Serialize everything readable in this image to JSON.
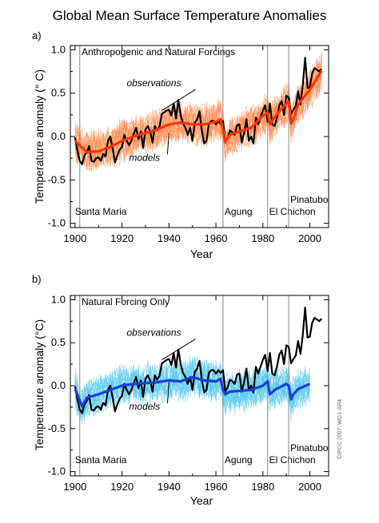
{
  "figure_title": "Global Mean Surface Temperature Anomalies",
  "copyright": "©IPCC 2007: WG1-AR4",
  "colors": {
    "observations": "#000000",
    "models_mean_a": "#ff3300",
    "models_ensemble_a": "#ff8a4d",
    "models_mean_b": "#1a3fd6",
    "models_ensemble_b": "#55c8f0",
    "event_lines": "#999999",
    "axes": "#000000"
  },
  "chart_data": [
    {
      "type": "line",
      "panel_label": "a)",
      "title": "Anthropogenic and Natural Forcings",
      "xlabel": "Year",
      "ylabel": "Temperature anomaly (° C)",
      "xlim": [
        1898,
        2008
      ],
      "ylim": [
        -1.05,
        1.05
      ],
      "x_ticks": [
        "1900",
        "1920",
        "1940",
        "1960",
        "1980",
        "2000"
      ],
      "y_ticks": [
        "1.0",
        "0.5",
        "0.0",
        "-0.5",
        "-1.0"
      ],
      "grid": false,
      "events": [
        {
          "name": "Santa Maria",
          "year": 1902
        },
        {
          "name": "Agung",
          "year": 1963
        },
        {
          "name": "El Chichon",
          "year": 1982
        },
        {
          "name": "Pinatubo",
          "year": 1991
        }
      ],
      "annotations": [
        {
          "text": "observations",
          "x": 1922,
          "y": 0.58,
          "arrow_to": [
            1937,
            0.3
          ]
        },
        {
          "text": "models",
          "x": 1923,
          "y": -0.28,
          "arrow_to": [
            1940,
            0.04
          ]
        }
      ],
      "series": [
        {
          "name": "observations",
          "role": "observations",
          "x": [
            1900,
            1901,
            1902,
            1903,
            1904,
            1905,
            1906,
            1907,
            1908,
            1909,
            1910,
            1911,
            1912,
            1913,
            1914,
            1915,
            1916,
            1917,
            1918,
            1919,
            1920,
            1921,
            1922,
            1923,
            1924,
            1925,
            1926,
            1927,
            1928,
            1929,
            1930,
            1931,
            1932,
            1933,
            1934,
            1935,
            1936,
            1937,
            1938,
            1939,
            1940,
            1941,
            1942,
            1943,
            1944,
            1945,
            1946,
            1947,
            1948,
            1949,
            1950,
            1951,
            1952,
            1953,
            1954,
            1955,
            1956,
            1957,
            1958,
            1959,
            1960,
            1961,
            1962,
            1963,
            1964,
            1965,
            1966,
            1967,
            1968,
            1969,
            1970,
            1971,
            1972,
            1973,
            1974,
            1975,
            1976,
            1977,
            1978,
            1979,
            1980,
            1981,
            1982,
            1983,
            1984,
            1985,
            1986,
            1987,
            1988,
            1989,
            1990,
            1991,
            1992,
            1993,
            1994,
            1995,
            1996,
            1997,
            1998,
            1999,
            2000,
            2001,
            2002,
            2003,
            2004,
            2005
          ],
          "values": [
            -0.01,
            -0.16,
            -0.28,
            -0.32,
            -0.22,
            -0.18,
            -0.11,
            -0.28,
            -0.29,
            -0.25,
            -0.24,
            -0.28,
            -0.2,
            -0.23,
            -0.05,
            0.0,
            -0.14,
            -0.3,
            -0.22,
            -0.15,
            -0.12,
            0.02,
            -0.05,
            -0.1,
            -0.05,
            0.03,
            0.1,
            -0.03,
            0.06,
            -0.13,
            0.08,
            0.12,
            0.06,
            -0.07,
            0.12,
            0.07,
            0.12,
            0.26,
            0.28,
            0.3,
            0.31,
            0.24,
            0.38,
            0.21,
            0.42,
            0.25,
            0.15,
            0.1,
            0.02,
            0.1,
            -0.05,
            0.16,
            0.2,
            0.29,
            0.07,
            -0.08,
            -0.05,
            0.15,
            0.18,
            0.18,
            0.14,
            0.18,
            0.15,
            0.18,
            -0.07,
            -0.02,
            0.07,
            0.05,
            0.02,
            0.13,
            0.14,
            -0.07,
            0.04,
            0.2,
            -0.05,
            0.0,
            -0.08,
            0.22,
            0.14,
            0.22,
            0.3,
            0.36,
            0.17,
            0.38,
            0.14,
            0.12,
            0.22,
            0.36,
            0.41,
            0.25,
            0.47,
            0.45,
            0.26,
            0.31,
            0.35,
            0.52,
            0.37,
            0.59,
            0.91,
            0.56,
            0.57,
            0.73,
            0.79,
            0.77,
            0.75,
            0.78
          ]
        },
        {
          "name": "models",
          "role": "model_mean",
          "x": [
            1900,
            1905,
            1910,
            1915,
            1920,
            1925,
            1930,
            1935,
            1940,
            1945,
            1950,
            1955,
            1960,
            1962,
            1963,
            1964,
            1966,
            1970,
            1975,
            1980,
            1982,
            1983,
            1984,
            1986,
            1990,
            1991,
            1992,
            1993,
            1995,
            2000,
            2005
          ],
          "values": [
            -0.05,
            -0.18,
            -0.17,
            -0.12,
            -0.05,
            0.0,
            0.04,
            0.08,
            0.14,
            0.16,
            0.14,
            0.14,
            0.17,
            0.2,
            0.08,
            -0.06,
            0.02,
            0.06,
            0.1,
            0.24,
            0.28,
            0.14,
            0.18,
            0.26,
            0.38,
            0.4,
            0.15,
            0.2,
            0.37,
            0.54,
            0.76
          ]
        }
      ]
    },
    {
      "type": "line",
      "panel_label": "b)",
      "title": "Natural Forcing Only",
      "xlabel": "Year",
      "ylabel": "Temperature anomaly (°C)",
      "xlim": [
        1898,
        2008
      ],
      "ylim": [
        -1.05,
        1.05
      ],
      "x_ticks": [
        "1900",
        "1920",
        "1940",
        "1960",
        "1980",
        "2000"
      ],
      "y_ticks": [
        "1.0",
        "0.5",
        "0.0",
        "-0.5",
        "-1.0"
      ],
      "grid": false,
      "events": [
        {
          "name": "Santa Maria",
          "year": 1902
        },
        {
          "name": "Agung",
          "year": 1963
        },
        {
          "name": "El Chichon",
          "year": 1982
        },
        {
          "name": "Pinatubo",
          "year": 1991
        }
      ],
      "annotations": [
        {
          "text": "observations",
          "x": 1922,
          "y": 0.58,
          "arrow_to": [
            1937,
            0.3
          ]
        },
        {
          "text": "models",
          "x": 1923,
          "y": -0.28,
          "arrow_to": [
            1940,
            0.04
          ]
        }
      ],
      "series": [
        {
          "name": "observations",
          "role": "observations",
          "x": [
            1900,
            1901,
            1902,
            1903,
            1904,
            1905,
            1906,
            1907,
            1908,
            1909,
            1910,
            1911,
            1912,
            1913,
            1914,
            1915,
            1916,
            1917,
            1918,
            1919,
            1920,
            1921,
            1922,
            1923,
            1924,
            1925,
            1926,
            1927,
            1928,
            1929,
            1930,
            1931,
            1932,
            1933,
            1934,
            1935,
            1936,
            1937,
            1938,
            1939,
            1940,
            1941,
            1942,
            1943,
            1944,
            1945,
            1946,
            1947,
            1948,
            1949,
            1950,
            1951,
            1952,
            1953,
            1954,
            1955,
            1956,
            1957,
            1958,
            1959,
            1960,
            1961,
            1962,
            1963,
            1964,
            1965,
            1966,
            1967,
            1968,
            1969,
            1970,
            1971,
            1972,
            1973,
            1974,
            1975,
            1976,
            1977,
            1978,
            1979,
            1980,
            1981,
            1982,
            1983,
            1984,
            1985,
            1986,
            1987,
            1988,
            1989,
            1990,
            1991,
            1992,
            1993,
            1994,
            1995,
            1996,
            1997,
            1998,
            1999,
            2000,
            2001,
            2002,
            2003,
            2004,
            2005
          ],
          "values": [
            -0.01,
            -0.16,
            -0.28,
            -0.32,
            -0.22,
            -0.18,
            -0.11,
            -0.28,
            -0.29,
            -0.25,
            -0.24,
            -0.28,
            -0.2,
            -0.23,
            -0.05,
            0.0,
            -0.14,
            -0.3,
            -0.22,
            -0.15,
            -0.12,
            0.02,
            -0.05,
            -0.1,
            -0.05,
            0.03,
            0.1,
            -0.03,
            0.06,
            -0.13,
            0.08,
            0.12,
            0.06,
            -0.07,
            0.12,
            0.07,
            0.12,
            0.26,
            0.28,
            0.3,
            0.31,
            0.24,
            0.38,
            0.21,
            0.42,
            0.25,
            0.15,
            0.1,
            0.02,
            0.1,
            -0.05,
            0.16,
            0.2,
            0.29,
            0.07,
            -0.08,
            -0.05,
            0.15,
            0.18,
            0.18,
            0.14,
            0.18,
            0.15,
            0.18,
            -0.07,
            -0.02,
            0.07,
            0.05,
            0.02,
            0.13,
            0.14,
            -0.07,
            0.04,
            0.2,
            -0.05,
            0.0,
            -0.08,
            0.22,
            0.14,
            0.22,
            0.3,
            0.36,
            0.17,
            0.38,
            0.14,
            0.12,
            0.22,
            0.36,
            0.41,
            0.25,
            0.47,
            0.45,
            0.26,
            0.31,
            0.35,
            0.52,
            0.37,
            0.59,
            0.91,
            0.56,
            0.57,
            0.73,
            0.79,
            0.77,
            0.75,
            0.78
          ]
        },
        {
          "name": "models",
          "role": "model_mean",
          "x": [
            1900,
            1903,
            1905,
            1910,
            1915,
            1920,
            1925,
            1930,
            1935,
            1940,
            1945,
            1950,
            1955,
            1960,
            1962,
            1963,
            1964,
            1966,
            1970,
            1975,
            1980,
            1982,
            1983,
            1985,
            1990,
            1991,
            1992,
            1993,
            1995,
            2000
          ],
          "values": [
            -0.04,
            -0.24,
            -0.14,
            -0.1,
            -0.05,
            0.0,
            0.02,
            0.03,
            0.04,
            0.06,
            0.05,
            0.1,
            0.06,
            0.05,
            0.08,
            -0.05,
            -0.1,
            -0.07,
            -0.06,
            -0.05,
            0.0,
            0.05,
            -0.1,
            -0.05,
            0.02,
            0.0,
            -0.16,
            -0.1,
            -0.04,
            0.02
          ]
        }
      ]
    }
  ]
}
